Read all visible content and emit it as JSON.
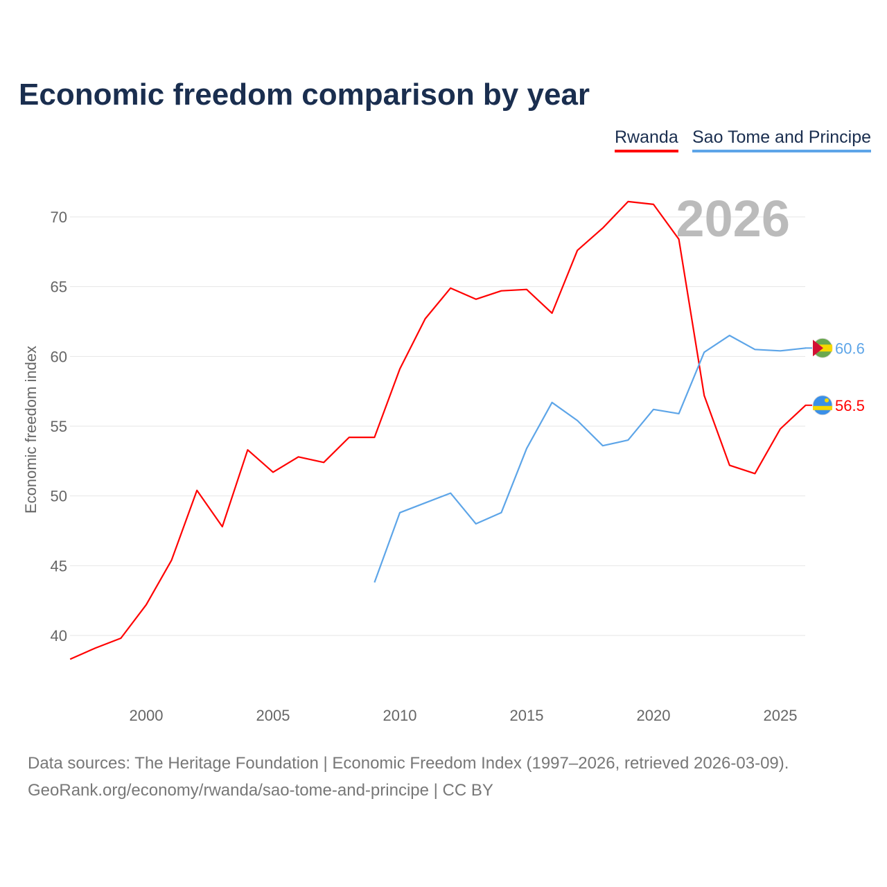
{
  "chart_data": {
    "type": "line",
    "title": "Economic freedom comparison by year",
    "ylabel": "Economic freedom index",
    "xlabel": "",
    "ylim": [
      35,
      72.5
    ],
    "xlim": [
      1997,
      2026
    ],
    "yticks": [
      40,
      45,
      50,
      55,
      60,
      65,
      70
    ],
    "xticks": [
      2000,
      2005,
      2010,
      2015,
      2020,
      2025
    ],
    "grid": true,
    "legend_position": "top-right",
    "year_watermark": "2026",
    "series": [
      {
        "name": "Rwanda",
        "color": "#ff0000",
        "end_label": "56.5",
        "x": [
          1997,
          1998,
          1999,
          2000,
          2001,
          2002,
          2003,
          2004,
          2005,
          2006,
          2007,
          2008,
          2009,
          2010,
          2011,
          2012,
          2013,
          2014,
          2015,
          2016,
          2017,
          2018,
          2019,
          2020,
          2021,
          2022,
          2023,
          2024,
          2025,
          2026
        ],
        "values": [
          38.3,
          39.1,
          39.8,
          42.2,
          45.4,
          50.4,
          47.8,
          53.3,
          51.7,
          52.8,
          52.4,
          54.2,
          54.2,
          59.1,
          62.7,
          64.9,
          64.1,
          64.7,
          64.8,
          63.1,
          67.6,
          69.2,
          71.1,
          70.9,
          68.4,
          57.2,
          52.2,
          51.6,
          54.8,
          56.5
        ]
      },
      {
        "name": "Sao Tome and Principe",
        "color": "#5da5e8",
        "end_label": "60.6",
        "x": [
          2009,
          2010,
          2011,
          2012,
          2013,
          2014,
          2015,
          2016,
          2017,
          2018,
          2019,
          2020,
          2021,
          2022,
          2023,
          2024,
          2025,
          2026
        ],
        "values": [
          43.8,
          48.8,
          49.5,
          50.2,
          48.0,
          48.8,
          53.4,
          56.7,
          55.4,
          53.6,
          54.0,
          56.2,
          55.9,
          60.3,
          61.5,
          60.5,
          60.4,
          60.6
        ]
      }
    ]
  },
  "source_line1": "Data sources: The Heritage Foundation | Economic Freedom Index (1997–2026, retrieved 2026-03-09).",
  "source_line2": "GeoRank.org/economy/rwanda/sao-tome-and-principe | CC BY"
}
